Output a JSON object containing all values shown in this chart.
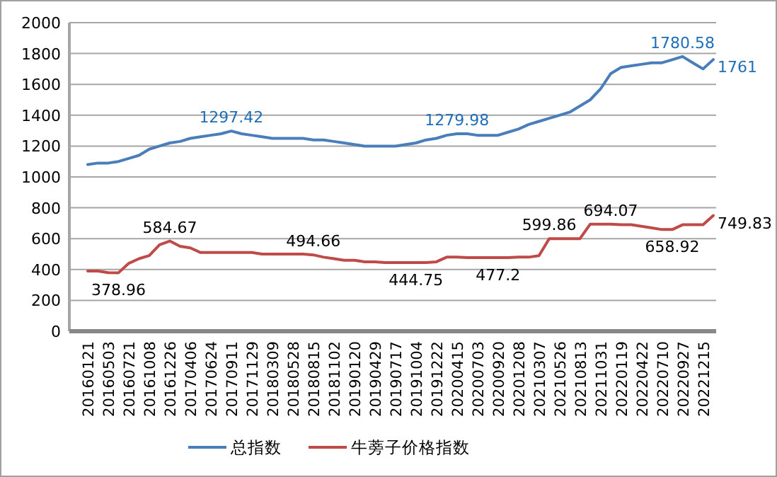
{
  "chart_data": {
    "type": "line",
    "categories": [
      "20160121",
      null,
      "20160503",
      null,
      "20160721",
      null,
      "20161008",
      null,
      "20161226",
      null,
      "20170406",
      null,
      "20170624",
      null,
      "20170911",
      null,
      "20171129",
      null,
      "20180309",
      null,
      "20180528",
      null,
      "20180815",
      null,
      "20181102",
      null,
      "20190120",
      null,
      "20190429",
      null,
      "20190717",
      null,
      "20191004",
      null,
      "20191222",
      null,
      "20200415",
      null,
      "20200703",
      null,
      "20200920",
      null,
      "20201208",
      null,
      "20210307",
      null,
      "20210526",
      null,
      "20210813",
      null,
      "20211031",
      null,
      "20220119",
      null,
      "20220422",
      null,
      "20220710",
      null,
      "20220927",
      null,
      "20221215",
      null
    ],
    "series": [
      {
        "name": "总指数",
        "color": "#4a7ebb",
        "values": [
          1080,
          1090,
          1090,
          1100,
          1120,
          1140,
          1180,
          1200,
          1220,
          1230,
          1250,
          1260,
          1270,
          1280,
          1297.42,
          1280,
          1270,
          1260,
          1250,
          1250,
          1250,
          1250,
          1240,
          1240,
          1230,
          1220,
          1210,
          1200,
          1200,
          1200,
          1200,
          1210,
          1220,
          1240,
          1250,
          1270,
          1279.98,
          1280,
          1270,
          1270,
          1270,
          1290,
          1310,
          1340,
          1360,
          1380,
          1400,
          1420,
          1460,
          1500,
          1570,
          1670,
          1710,
          1720,
          1730,
          1740,
          1740,
          1760,
          1780.58,
          1740,
          1700,
          1761
        ],
        "value_labels": [
          null,
          null,
          null,
          null,
          null,
          null,
          null,
          null,
          null,
          null,
          null,
          null,
          null,
          null,
          "1297.42",
          null,
          null,
          null,
          null,
          null,
          null,
          null,
          null,
          null,
          null,
          null,
          null,
          null,
          null,
          null,
          null,
          null,
          null,
          null,
          null,
          null,
          "1279.98",
          null,
          null,
          null,
          null,
          null,
          null,
          null,
          null,
          null,
          null,
          null,
          null,
          null,
          null,
          null,
          null,
          null,
          null,
          null,
          null,
          null,
          "1780.58",
          null,
          null,
          "1761"
        ]
      },
      {
        "name": "牛蒡子价格指数",
        "color": "#be4b48",
        "values": [
          390,
          390,
          380,
          378.96,
          440,
          470,
          490,
          560,
          584.67,
          550,
          540,
          510,
          510,
          510,
          510,
          510,
          510,
          500,
          500,
          500,
          500,
          500,
          494.66,
          480,
          470,
          460,
          460,
          450,
          450,
          444.75,
          444.75,
          444.75,
          444.75,
          444.75,
          450,
          480,
          480,
          477.2,
          477.2,
          477.2,
          477.2,
          477.2,
          480,
          480,
          490,
          599.86,
          599.86,
          599.86,
          600,
          694.07,
          694.07,
          694.07,
          690,
          690,
          680,
          670,
          658.92,
          658.92,
          690,
          690,
          690,
          749.83
        ],
        "value_labels": [
          null,
          null,
          null,
          "378.96",
          null,
          null,
          null,
          null,
          "584.67",
          null,
          null,
          null,
          null,
          null,
          null,
          null,
          null,
          null,
          null,
          null,
          null,
          null,
          "494.66",
          null,
          null,
          null,
          null,
          null,
          null,
          null,
          null,
          null,
          "444.75",
          null,
          null,
          null,
          null,
          null,
          null,
          null,
          "477.2",
          null,
          null,
          null,
          null,
          "599.86",
          null,
          null,
          null,
          null,
          null,
          "694.07",
          null,
          null,
          null,
          null,
          null,
          "658.92",
          null,
          null,
          null,
          "749.83"
        ]
      }
    ],
    "ylim": [
      0,
      2000
    ],
    "yticks": [
      0,
      200,
      400,
      600,
      800,
      1000,
      1200,
      1400,
      1600,
      1800,
      2000
    ],
    "grid": "y",
    "legend": "bottom",
    "line_style": "solid",
    "marker": "none"
  }
}
